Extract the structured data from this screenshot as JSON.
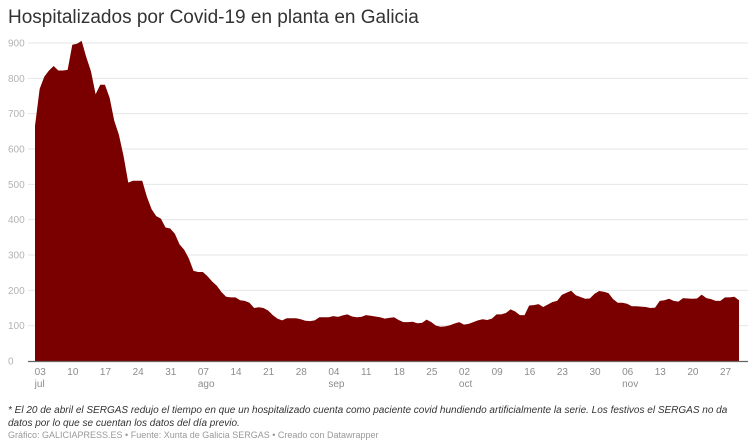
{
  "title": "Hospitalizados por Covid-19 en planta en Galicia",
  "note": "* El 20 de abril el SERGAS redujo el tiempo en que un hospitalizado cuenta como paciente covid hundiendo artificialmente la serie. Los festivos el SERGAS no da datos por lo que se cuentan los datos del día previo.",
  "credit": "Gráfico: GALICIAPRESS.ES • Fuente: Xunta de Galicia SERGAS • Creado con Datawrapper",
  "colors": {
    "area": "#7a0000",
    "grid": "#e6e6e6",
    "axis": "#333333"
  },
  "chart_data": {
    "type": "area",
    "title": "Hospitalizados por Covid-19 en planta en Galicia",
    "xlabel": "",
    "ylabel": "",
    "ylim": [
      0,
      900
    ],
    "yticks": [
      0,
      100,
      200,
      300,
      400,
      500,
      600,
      700,
      800,
      900
    ],
    "grid": true,
    "legend": "none",
    "x_start": "2020-07-02",
    "x_tick_labels": [
      {
        "day": "03",
        "month": "jul"
      },
      {
        "day": "10",
        "month": ""
      },
      {
        "day": "17",
        "month": ""
      },
      {
        "day": "24",
        "month": ""
      },
      {
        "day": "31",
        "month": ""
      },
      {
        "day": "07",
        "month": "ago"
      },
      {
        "day": "14",
        "month": ""
      },
      {
        "day": "21",
        "month": ""
      },
      {
        "day": "28",
        "month": ""
      },
      {
        "day": "04",
        "month": "sep"
      },
      {
        "day": "11",
        "month": ""
      },
      {
        "day": "18",
        "month": ""
      },
      {
        "day": "25",
        "month": ""
      },
      {
        "day": "02",
        "month": "oct"
      },
      {
        "day": "09",
        "month": ""
      },
      {
        "day": "16",
        "month": ""
      },
      {
        "day": "23",
        "month": ""
      },
      {
        "day": "30",
        "month": ""
      },
      {
        "day": "06",
        "month": "nov"
      },
      {
        "day": "13",
        "month": ""
      },
      {
        "day": "20",
        "month": ""
      },
      {
        "day": "27",
        "month": ""
      }
    ],
    "values": [
      665,
      770,
      805,
      822,
      835,
      822,
      822,
      824,
      895,
      898,
      906,
      860,
      820,
      755,
      782,
      782,
      745,
      680,
      640,
      580,
      505,
      510,
      510,
      510,
      465,
      430,
      410,
      403,
      378,
      375,
      360,
      330,
      315,
      290,
      255,
      252,
      252,
      240,
      225,
      213,
      195,
      182,
      180,
      180,
      172,
      170,
      165,
      150,
      152,
      150,
      143,
      130,
      120,
      115,
      121,
      121,
      121,
      118,
      114,
      113,
      115,
      124,
      124,
      124,
      127,
      125,
      129,
      132,
      126,
      124,
      125,
      130,
      128,
      126,
      124,
      120,
      122,
      124,
      116,
      110,
      110,
      111,
      107,
      108,
      117,
      110,
      100,
      97,
      98,
      101,
      106,
      110,
      103,
      105,
      110,
      115,
      118,
      116,
      120,
      132,
      132,
      136,
      146,
      140,
      130,
      130,
      157,
      158,
      161,
      153,
      160,
      167,
      170,
      187,
      193,
      199,
      186,
      181,
      176,
      177,
      190,
      198,
      196,
      192,
      175,
      165,
      165,
      162,
      155,
      155,
      154,
      153,
      150,
      151,
      170,
      172,
      176,
      170,
      168,
      178,
      177,
      176,
      177,
      188,
      178,
      175,
      170,
      170,
      180,
      180,
      182,
      172
    ]
  }
}
